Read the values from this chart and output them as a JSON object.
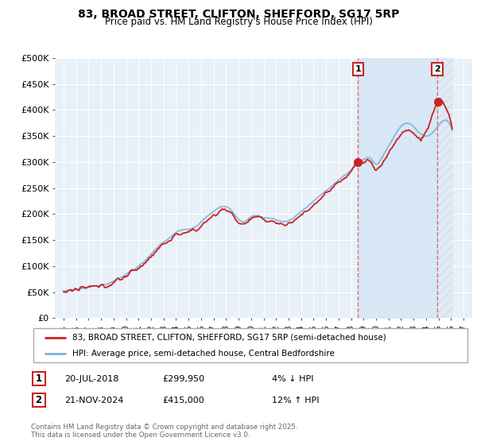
{
  "title_line1": "83, BROAD STREET, CLIFTON, SHEFFORD, SG17 5RP",
  "title_line2": "Price paid vs. HM Land Registry's House Price Index (HPI)",
  "ylim": [
    0,
    500000
  ],
  "yticks": [
    0,
    50000,
    100000,
    150000,
    200000,
    250000,
    300000,
    350000,
    400000,
    450000,
    500000
  ],
  "ytick_labels": [
    "£0",
    "£50K",
    "£100K",
    "£150K",
    "£200K",
    "£250K",
    "£300K",
    "£350K",
    "£400K",
    "£450K",
    "£500K"
  ],
  "hpi_color": "#7ab4d8",
  "price_color": "#cc2222",
  "dashed_color": "#e06060",
  "marker1_year": 2018.55,
  "marker1_price": 299950,
  "marker2_year": 2024.9,
  "marker2_price": 415000,
  "legend_line1": "83, BROAD STREET, CLIFTON, SHEFFORD, SG17 5RP (semi-detached house)",
  "legend_line2": "HPI: Average price, semi-detached house, Central Bedfordshire",
  "marker1_date": "20-JUL-2018",
  "marker1_amount": "£299,950",
  "marker1_hpi_text": "4% ↓ HPI",
  "marker2_date": "21-NOV-2024",
  "marker2_amount": "£415,000",
  "marker2_hpi_text": "12% ↑ HPI",
  "footer_line1": "Contains HM Land Registry data © Crown copyright and database right 2025.",
  "footer_line2": "This data is licensed under the Open Government Licence v3.0.",
  "bg_color": "#e8f0f8",
  "shade_between_color": "#d0e4f4",
  "shade_after_color": "#dce8f5"
}
